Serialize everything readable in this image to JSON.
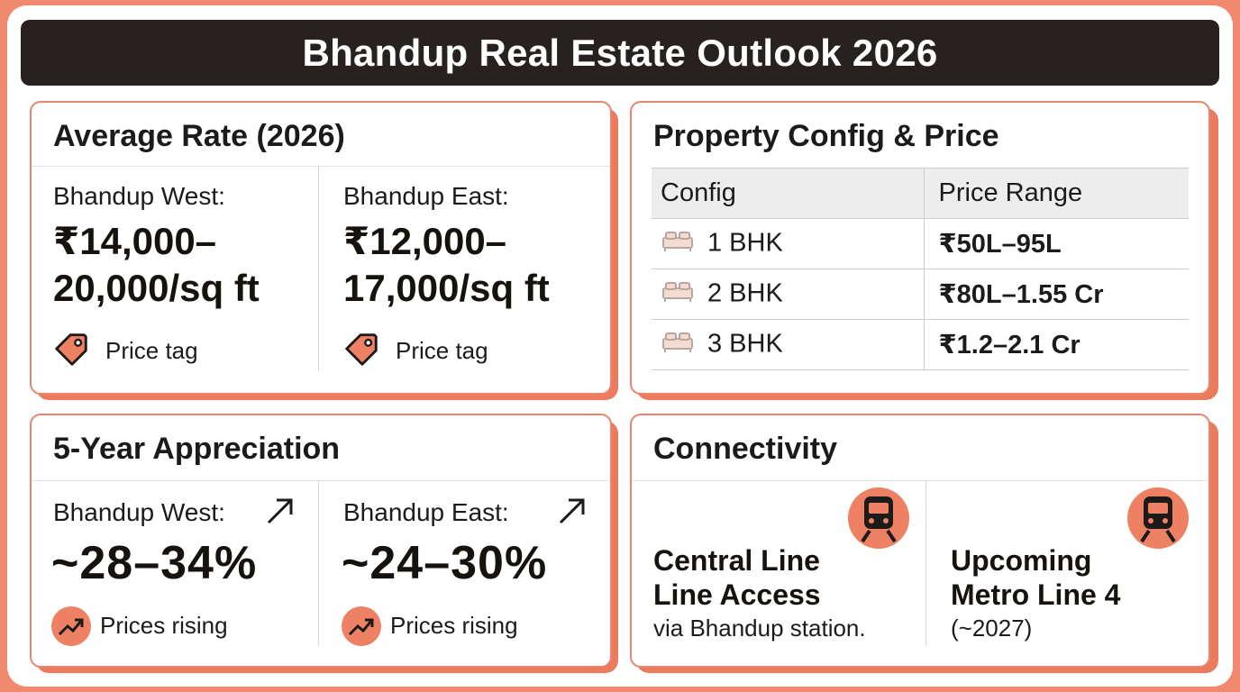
{
  "title": "Bhandup Real Estate Outlook 2026",
  "average_rate": {
    "heading": "Average Rate (2026)",
    "west": {
      "label": "Bhandup West:",
      "value_line1": "₹14,000–",
      "value_line2": "20,000/sq ft",
      "tag": "Price tag",
      "icon": "price-tag-icon"
    },
    "east": {
      "label": "Bhandup East:",
      "value_line1": "₹12,000–",
      "value_line2": "17,000/sq ft",
      "tag": "Price tag",
      "icon": "price-tag-icon"
    }
  },
  "property_config": {
    "heading": "Property Config & Price",
    "columns": [
      "Config",
      "Price Range"
    ],
    "rows": [
      {
        "config": "1 BHK",
        "price": "₹50L–95L",
        "icon": "bed-icon"
      },
      {
        "config": "2 BHK",
        "price": "₹80L–1.55 Cr",
        "icon": "bed-icon"
      },
      {
        "config": "3 BHK",
        "price": "₹1.2–2.1 Cr",
        "icon": "bed-icon"
      }
    ]
  },
  "appreciation": {
    "heading": "5-Year Appreciation",
    "west": {
      "label": "Bhandup West:",
      "value": "~28–34%",
      "caption": "Prices rising",
      "icon": "trend-up-icon"
    },
    "east": {
      "label": "Bhandup East:",
      "value": "~24–30%",
      "caption": "Prices rising",
      "icon": "trend-up-icon"
    }
  },
  "connectivity": {
    "heading": "Connectivity",
    "items": [
      {
        "title_line1": "Central Line",
        "title_line2": "Line Access",
        "sub": "via Bhandup station.",
        "icon": "train-icon"
      },
      {
        "title_line1": "Upcoming",
        "title_line2": "Metro Line 4",
        "sub": "(~2027)",
        "icon": "train-icon"
      }
    ]
  },
  "colors": {
    "accent": "#ee8163",
    "dark": "#27221f",
    "background": "#f08a6e"
  }
}
